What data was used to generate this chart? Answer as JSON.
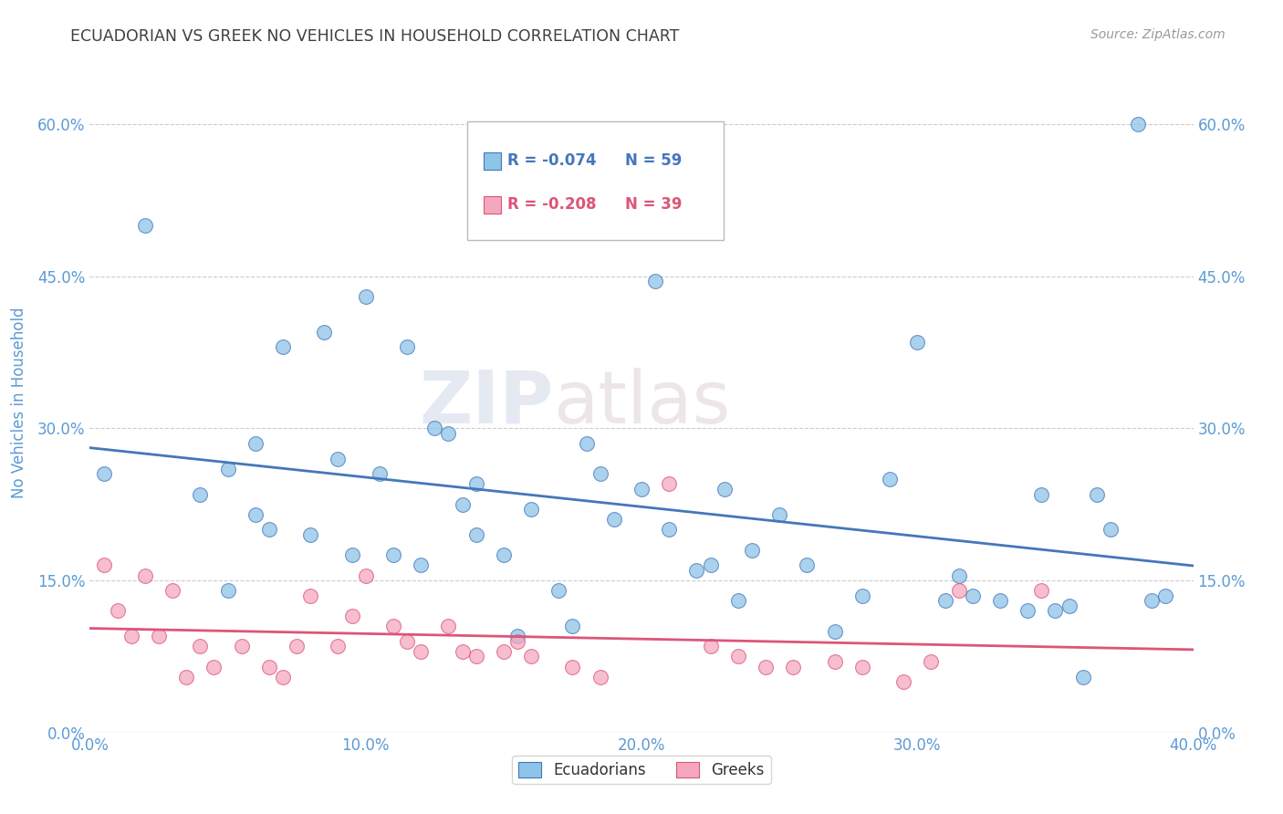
{
  "title": "ECUADORIAN VS GREEK NO VEHICLES IN HOUSEHOLD CORRELATION CHART",
  "source": "Source: ZipAtlas.com",
  "ylabel": "No Vehicles in Household",
  "watermark_zip": "ZIP",
  "watermark_atlas": "atlas",
  "xlim": [
    0.0,
    0.4
  ],
  "ylim": [
    0.0,
    0.65
  ],
  "xticks": [
    0.0,
    0.1,
    0.2,
    0.3,
    0.4
  ],
  "xtick_labels": [
    "0.0%",
    "10.0%",
    "20.0%",
    "30.0%",
    "40.0%"
  ],
  "yticks": [
    0.0,
    0.15,
    0.3,
    0.45,
    0.6
  ],
  "ytick_labels": [
    "0.0%",
    "15.0%",
    "30.0%",
    "45.0%",
    "60.0%"
  ],
  "ecuadorians_color": "#8EC4E8",
  "greeks_color": "#F4A8BE",
  "trend_ecuador_color": "#4477BB",
  "trend_greek_color": "#DD5577",
  "legend_r_ecuador": "R = -0.074",
  "legend_n_ecuador": "N = 59",
  "legend_r_greek": "R = -0.208",
  "legend_n_greek": "N = 39",
  "ecuadorians_x": [
    0.005,
    0.02,
    0.04,
    0.05,
    0.05,
    0.06,
    0.06,
    0.065,
    0.07,
    0.08,
    0.085,
    0.09,
    0.095,
    0.1,
    0.105,
    0.11,
    0.115,
    0.12,
    0.125,
    0.13,
    0.135,
    0.14,
    0.14,
    0.15,
    0.155,
    0.16,
    0.17,
    0.175,
    0.18,
    0.185,
    0.19,
    0.2,
    0.205,
    0.21,
    0.22,
    0.225,
    0.23,
    0.235,
    0.24,
    0.25,
    0.26,
    0.27,
    0.28,
    0.29,
    0.3,
    0.31,
    0.315,
    0.32,
    0.33,
    0.34,
    0.345,
    0.35,
    0.355,
    0.36,
    0.365,
    0.37,
    0.38,
    0.385,
    0.39
  ],
  "ecuadorians_y": [
    0.255,
    0.5,
    0.235,
    0.26,
    0.14,
    0.285,
    0.215,
    0.2,
    0.38,
    0.195,
    0.395,
    0.27,
    0.175,
    0.43,
    0.255,
    0.175,
    0.38,
    0.165,
    0.3,
    0.295,
    0.225,
    0.245,
    0.195,
    0.175,
    0.095,
    0.22,
    0.14,
    0.105,
    0.285,
    0.255,
    0.21,
    0.24,
    0.445,
    0.2,
    0.16,
    0.165,
    0.24,
    0.13,
    0.18,
    0.215,
    0.165,
    0.1,
    0.135,
    0.25,
    0.385,
    0.13,
    0.155,
    0.135,
    0.13,
    0.12,
    0.235,
    0.12,
    0.125,
    0.055,
    0.235,
    0.2,
    0.6,
    0.13,
    0.135
  ],
  "greeks_x": [
    0.005,
    0.01,
    0.015,
    0.02,
    0.025,
    0.03,
    0.035,
    0.04,
    0.045,
    0.055,
    0.065,
    0.07,
    0.075,
    0.08,
    0.09,
    0.095,
    0.1,
    0.11,
    0.115,
    0.12,
    0.13,
    0.135,
    0.14,
    0.15,
    0.155,
    0.16,
    0.175,
    0.185,
    0.21,
    0.225,
    0.235,
    0.245,
    0.255,
    0.27,
    0.28,
    0.295,
    0.305,
    0.315,
    0.345
  ],
  "greeks_y": [
    0.165,
    0.12,
    0.095,
    0.155,
    0.095,
    0.14,
    0.055,
    0.085,
    0.065,
    0.085,
    0.065,
    0.055,
    0.085,
    0.135,
    0.085,
    0.115,
    0.155,
    0.105,
    0.09,
    0.08,
    0.105,
    0.08,
    0.075,
    0.08,
    0.09,
    0.075,
    0.065,
    0.055,
    0.245,
    0.085,
    0.075,
    0.065,
    0.065,
    0.07,
    0.065,
    0.05,
    0.07,
    0.14,
    0.14
  ],
  "background_color": "#ffffff",
  "grid_color": "#cccccc",
  "axis_label_color": "#5B9BD5",
  "title_color": "#404040"
}
